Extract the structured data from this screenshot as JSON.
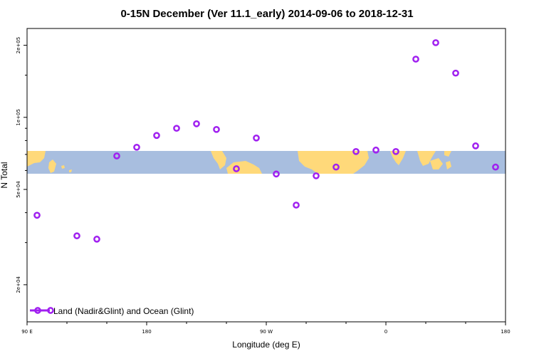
{
  "chart_data": {
    "type": "scatter",
    "title": "0-15N December (Ver 11.1_early)   2014-09-06 to 2018-12-31",
    "xlabel": "Longitude (deg E)",
    "ylabel": "N Total",
    "x_scale": "linear",
    "y_scale": "log",
    "xlim": [
      90,
      450
    ],
    "ylim": [
      14000,
      235000
    ],
    "x_ticks": [
      {
        "value": 90,
        "label": "90 E"
      },
      {
        "value": 180,
        "label": "180"
      },
      {
        "value": 270,
        "label": "90 W"
      },
      {
        "value": 360,
        "label": "0"
      },
      {
        "value": 450,
        "label": "180"
      }
    ],
    "y_ticks": [
      {
        "value": 20000,
        "label": "2e+04"
      },
      {
        "value": 50000,
        "label": "5e+04"
      },
      {
        "value": 100000,
        "label": "1e+05"
      },
      {
        "value": 200000,
        "label": "2e+05"
      }
    ],
    "x_ticks_minor": [
      120,
      150,
      210,
      240,
      300,
      330,
      390,
      420
    ],
    "y_ticks_minor": [
      30000,
      40000,
      60000,
      70000,
      80000,
      90000,
      150000
    ],
    "series": [
      {
        "name": "Land (Nadir&Glint) and Ocean (Glint)",
        "color": "#a020f0",
        "x": [
          97.5,
          127.5,
          142.5,
          157.5,
          172.5,
          187.5,
          202.5,
          217.5,
          232.5,
          247.5,
          262.5,
          277.5,
          292.5,
          307.5,
          322.5,
          337.5,
          352.5,
          367.5,
          382.5,
          397.5,
          412.5,
          427.5,
          442.5
        ],
        "y": [
          39000,
          32000,
          31000,
          69000,
          75000,
          84000,
          90000,
          94000,
          89000,
          61000,
          82000,
          58000,
          43000,
          57000,
          62000,
          72000,
          73000,
          72000,
          175000,
          205000,
          153000,
          76000,
          62000
        ]
      }
    ],
    "legend": {
      "position": "bottom-left",
      "label": "Land (Nadir&Glint) and Ocean (Glint)"
    },
    "background_map": {
      "description": "world map strip",
      "ocean_color": "#a8bedf",
      "land_color": "#ffd97a",
      "lat_range": [
        0,
        15
      ]
    }
  }
}
